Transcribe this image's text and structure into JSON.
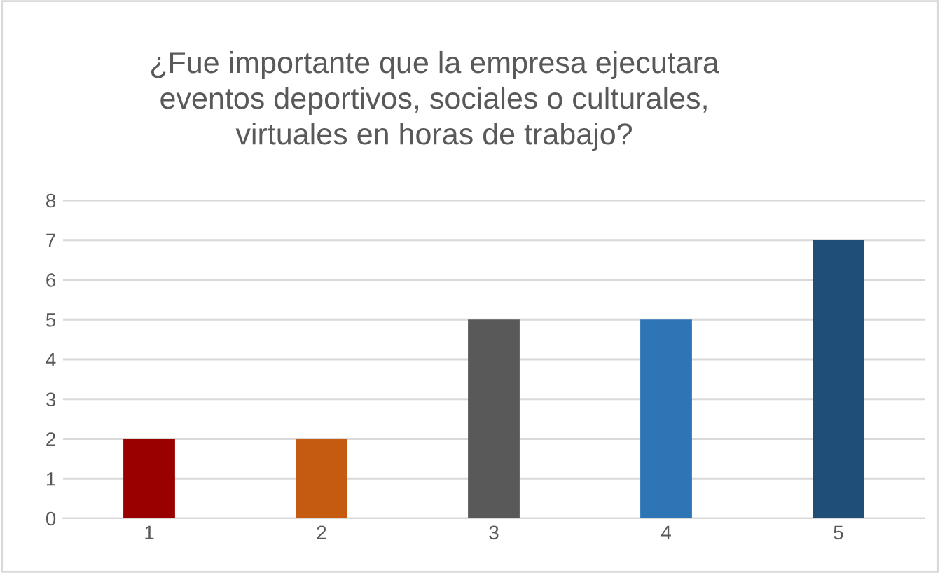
{
  "chart_data": {
    "type": "bar",
    "title": "¿Fue importante que la empresa ejecutara\neventos deportivos, sociales o culturales,\nvirtuales en horas de trabajo?",
    "categories": [
      "1",
      "2",
      "3",
      "4",
      "5"
    ],
    "values": [
      2,
      2,
      5,
      5,
      7
    ],
    "colors": [
      "#990000",
      "#c55a11",
      "#595959",
      "#2e75b6",
      "#1f4e79"
    ],
    "ylim": [
      0,
      8
    ],
    "yticks": [
      0,
      1,
      2,
      3,
      4,
      5,
      6,
      7,
      8
    ],
    "grid": "y"
  }
}
